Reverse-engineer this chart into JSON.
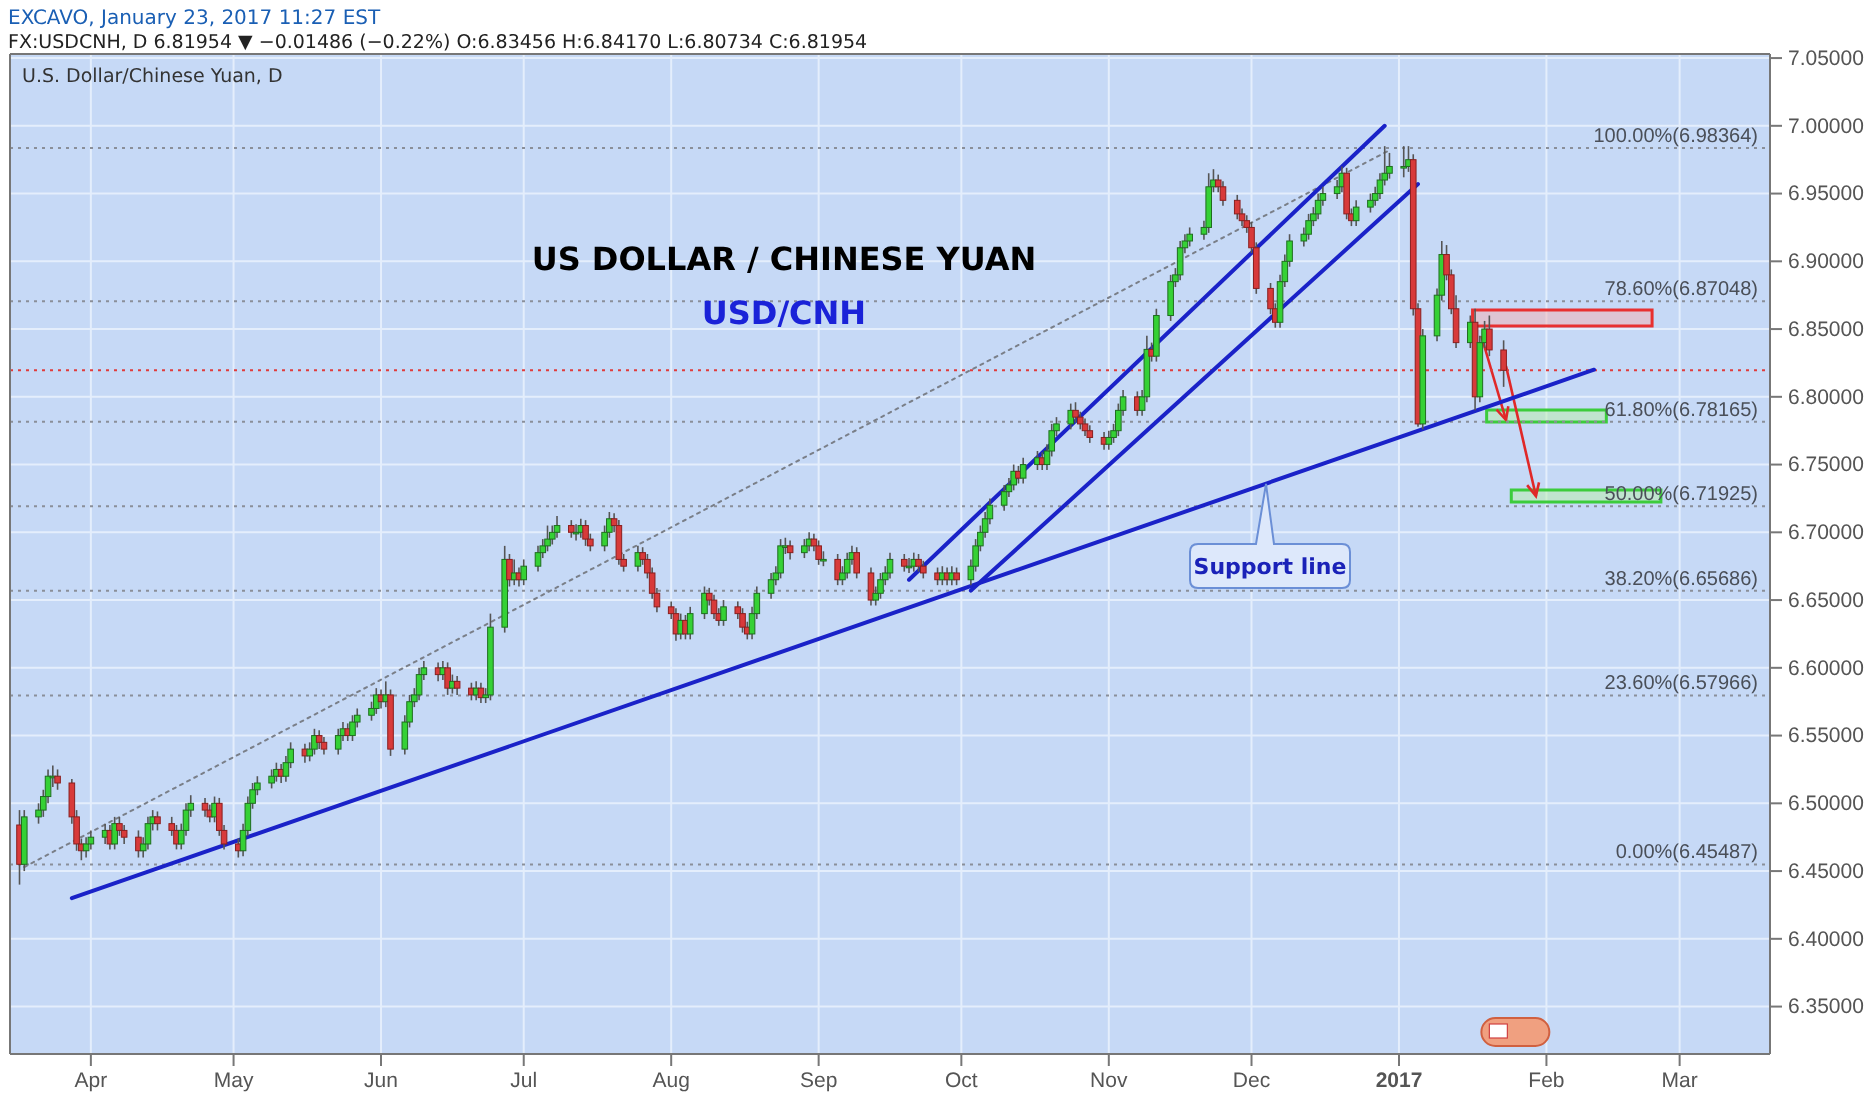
{
  "chart_data": {
    "type": "candlestick",
    "title": "US DOLLAR / CHINESE YUAN",
    "subtitle": "USD/CNH",
    "annotations": [
      "EXCAVO, January 23, 2017 11:27 EST",
      "FX:USDCNH, D 6.81954 ▼ −0.01486 (−0.22%) O:6.83456 H:6.84170 L:6.80734 C:6.81954",
      "U.S. Dollar/Chinese Yuan, D",
      "Support line"
    ],
    "xlim": [
      "2016-03-15",
      "2017-03-20"
    ],
    "xticks": [
      {
        "value": "2016-04-01",
        "label": "Apr"
      },
      {
        "value": "2016-05-01",
        "label": "May"
      },
      {
        "value": "2016-06-01",
        "label": "Jun"
      },
      {
        "value": "2016-07-01",
        "label": "Jul"
      },
      {
        "value": "2016-08-01",
        "label": "Aug"
      },
      {
        "value": "2016-09-01",
        "label": "Sep"
      },
      {
        "value": "2016-10-01",
        "label": "Oct"
      },
      {
        "value": "2016-11-01",
        "label": "Nov"
      },
      {
        "value": "2016-12-01",
        "label": "Dec"
      },
      {
        "value": "2017-01-01",
        "label": "2017"
      },
      {
        "value": "2017-02-01",
        "label": "Feb"
      },
      {
        "value": "2017-03-01",
        "label": "Mar"
      }
    ],
    "ylim": [
      6.315,
      7.053
    ],
    "yticks": [
      {
        "value": 6.35,
        "label": "6.35000"
      },
      {
        "value": 6.4,
        "label": "6.40000"
      },
      {
        "value": 6.45,
        "label": "6.45000"
      },
      {
        "value": 6.5,
        "label": "6.50000"
      },
      {
        "value": 6.55,
        "label": "6.55000"
      },
      {
        "value": 6.6,
        "label": "6.60000"
      },
      {
        "value": 6.65,
        "label": "6.65000"
      },
      {
        "value": 6.7,
        "label": "6.70000"
      },
      {
        "value": 6.75,
        "label": "6.75000"
      },
      {
        "value": 6.8,
        "label": "6.80000"
      },
      {
        "value": 6.85,
        "label": "6.85000"
      },
      {
        "value": 6.9,
        "label": "6.90000"
      },
      {
        "value": 6.95,
        "label": "6.95000"
      },
      {
        "value": 7.0,
        "label": "7.00000"
      },
      {
        "value": 7.05,
        "label": "7.05000"
      }
    ],
    "grid": true,
    "ref_lines": [
      {
        "axis": "y",
        "value": 6.98364,
        "label": "100.00%(6.98364)",
        "color": "#8a8f99",
        "line_style": "dotted"
      },
      {
        "axis": "y",
        "value": 6.87048,
        "label": "78.60%(6.87048)",
        "color": "#8a8f99",
        "line_style": "dotted"
      },
      {
        "axis": "y",
        "value": 6.78165,
        "label": "61.80%(6.78165)",
        "color": "#8a8f99",
        "line_style": "dotted"
      },
      {
        "axis": "y",
        "value": 6.71925,
        "label": "50.00%(6.71925)",
        "color": "#8a8f99",
        "line_style": "dotted"
      },
      {
        "axis": "y",
        "value": 6.65686,
        "label": "38.20%(6.65686)",
        "color": "#8a8f99",
        "line_style": "dotted"
      },
      {
        "axis": "y",
        "value": 6.57966,
        "label": "23.60%(6.57966)",
        "color": "#8a8f99",
        "line_style": "dotted"
      },
      {
        "axis": "y",
        "value": 6.45487,
        "label": "0.00%(6.45487)",
        "color": "#8a8f99",
        "line_style": "dotted"
      },
      {
        "axis": "y",
        "value": 6.81954,
        "color": "#e03c3c",
        "line_style": "dotted"
      }
    ],
    "series": [
      {
        "type": "line",
        "color": "#7a7f88",
        "line_style": "dotted",
        "x": [
          "2016-03-18",
          "2016-12-30"
        ],
        "values": [
          6.453,
          6.982
        ]
      },
      {
        "type": "line",
        "color": "#1a22c8",
        "x": [
          "2016-03-28",
          "2017-02-11"
        ],
        "values": [
          6.43,
          6.82
        ]
      },
      {
        "type": "line",
        "color": "#1a22c8",
        "x": [
          "2016-09-20",
          "2016-12-29"
        ],
        "values": [
          6.665,
          7.0
        ]
      },
      {
        "type": "line",
        "color": "#1a22c8",
        "x": [
          "2016-10-03",
          "2017-01-05"
        ],
        "values": [
          6.657,
          6.957
        ]
      }
    ],
    "x": [
      "2016-03-17",
      "2016-03-18",
      "2016-03-21",
      "2016-03-22",
      "2016-03-23",
      "2016-03-24",
      "2016-03-25",
      "2016-03-28",
      "2016-03-29",
      "2016-03-30",
      "2016-03-31",
      "2016-04-01",
      "2016-04-04",
      "2016-04-05",
      "2016-04-06",
      "2016-04-07",
      "2016-04-08",
      "2016-04-11",
      "2016-04-12",
      "2016-04-13",
      "2016-04-14",
      "2016-04-15",
      "2016-04-18",
      "2016-04-19",
      "2016-04-20",
      "2016-04-21",
      "2016-04-22",
      "2016-04-25",
      "2016-04-26",
      "2016-04-27",
      "2016-04-28",
      "2016-04-29",
      "2016-05-02",
      "2016-05-03",
      "2016-05-04",
      "2016-05-05",
      "2016-05-06",
      "2016-05-09",
      "2016-05-10",
      "2016-05-11",
      "2016-05-12",
      "2016-05-13",
      "2016-05-16",
      "2016-05-17",
      "2016-05-18",
      "2016-05-19",
      "2016-05-20",
      "2016-05-23",
      "2016-05-24",
      "2016-05-25",
      "2016-05-26",
      "2016-05-27",
      "2016-05-30",
      "2016-05-31",
      "2016-06-01",
      "2016-06-02",
      "2016-06-03",
      "2016-06-06",
      "2016-06-07",
      "2016-06-08",
      "2016-06-09",
      "2016-06-10",
      "2016-06-13",
      "2016-06-14",
      "2016-06-15",
      "2016-06-16",
      "2016-06-17",
      "2016-06-20",
      "2016-06-21",
      "2016-06-22",
      "2016-06-23",
      "2016-06-24",
      "2016-06-27",
      "2016-06-28",
      "2016-06-29",
      "2016-06-30",
      "2016-07-01",
      "2016-07-04",
      "2016-07-05",
      "2016-07-06",
      "2016-07-07",
      "2016-07-08",
      "2016-07-11",
      "2016-07-12",
      "2016-07-13",
      "2016-07-14",
      "2016-07-15",
      "2016-07-18",
      "2016-07-19",
      "2016-07-20",
      "2016-07-21",
      "2016-07-22",
      "2016-07-25",
      "2016-07-26",
      "2016-07-27",
      "2016-07-28",
      "2016-07-29",
      "2016-08-01",
      "2016-08-02",
      "2016-08-03",
      "2016-08-04",
      "2016-08-05",
      "2016-08-08",
      "2016-08-09",
      "2016-08-10",
      "2016-08-11",
      "2016-08-12",
      "2016-08-15",
      "2016-08-16",
      "2016-08-17",
      "2016-08-18",
      "2016-08-19",
      "2016-08-22",
      "2016-08-23",
      "2016-08-24",
      "2016-08-25",
      "2016-08-26",
      "2016-08-29",
      "2016-08-30",
      "2016-08-31",
      "2016-09-01",
      "2016-09-02",
      "2016-09-05",
      "2016-09-06",
      "2016-09-07",
      "2016-09-08",
      "2016-09-09",
      "2016-09-12",
      "2016-09-13",
      "2016-09-14",
      "2016-09-15",
      "2016-09-16",
      "2016-09-19",
      "2016-09-20",
      "2016-09-21",
      "2016-09-22",
      "2016-09-23",
      "2016-09-26",
      "2016-09-27",
      "2016-09-28",
      "2016-09-29",
      "2016-09-30",
      "2016-10-03",
      "2016-10-04",
      "2016-10-05",
      "2016-10-06",
      "2016-10-07",
      "2016-10-10",
      "2016-10-11",
      "2016-10-12",
      "2016-10-13",
      "2016-10-14",
      "2016-10-17",
      "2016-10-18",
      "2016-10-19",
      "2016-10-20",
      "2016-10-21",
      "2016-10-24",
      "2016-10-25",
      "2016-10-26",
      "2016-10-27",
      "2016-10-28",
      "2016-10-31",
      "2016-11-01",
      "2016-11-02",
      "2016-11-03",
      "2016-11-04",
      "2016-11-07",
      "2016-11-08",
      "2016-11-09",
      "2016-11-10",
      "2016-11-11",
      "2016-11-14",
      "2016-11-15",
      "2016-11-16",
      "2016-11-17",
      "2016-11-18",
      "2016-11-21",
      "2016-11-22",
      "2016-11-23",
      "2016-11-24",
      "2016-11-25",
      "2016-11-28",
      "2016-11-29",
      "2016-11-30",
      "2016-12-01",
      "2016-12-02",
      "2016-12-05",
      "2016-12-06",
      "2016-12-07",
      "2016-12-08",
      "2016-12-09",
      "2016-12-12",
      "2016-12-13",
      "2016-12-14",
      "2016-12-15",
      "2016-12-16",
      "2016-12-19",
      "2016-12-20",
      "2016-12-21",
      "2016-12-22",
      "2016-12-23",
      "2016-12-26",
      "2016-12-27",
      "2016-12-28",
      "2016-12-29",
      "2016-12-30",
      "2017-01-02",
      "2017-01-03",
      "2017-01-04",
      "2017-01-05",
      "2017-01-06",
      "2017-01-09",
      "2017-01-10",
      "2017-01-11",
      "2017-01-12",
      "2017-01-13",
      "2017-01-16",
      "2017-01-17",
      "2017-01-18",
      "2017-01-19",
      "2017-01-20",
      "2017-01-23"
    ],
    "ohlc": [
      [
        6.484,
        6.495,
        6.44,
        6.455
      ],
      [
        6.455,
        6.495,
        6.45,
        6.49
      ],
      [
        6.49,
        6.5,
        6.485,
        6.495
      ],
      [
        6.495,
        6.51,
        6.49,
        6.505
      ],
      [
        6.505,
        6.525,
        6.5,
        6.52
      ],
      [
        6.52,
        6.528,
        6.512,
        6.52
      ],
      [
        6.52,
        6.525,
        6.51,
        6.515
      ],
      [
        6.515,
        6.518,
        6.485,
        6.49
      ],
      [
        6.49,
        6.495,
        6.465,
        6.47
      ],
      [
        6.47,
        6.474,
        6.458,
        6.465
      ],
      [
        6.465,
        6.475,
        6.46,
        6.47
      ],
      [
        6.47,
        6.48,
        6.466,
        6.475
      ],
      [
        6.475,
        6.485,
        6.47,
        6.48
      ],
      [
        6.48,
        6.484,
        6.466,
        6.47
      ],
      [
        6.47,
        6.49,
        6.466,
        6.485
      ],
      [
        6.485,
        6.49,
        6.476,
        6.48
      ],
      [
        6.48,
        6.484,
        6.47,
        6.475
      ],
      [
        6.475,
        6.48,
        6.46,
        6.465
      ],
      [
        6.465,
        6.475,
        6.46,
        6.47
      ],
      [
        6.47,
        6.49,
        6.466,
        6.485
      ],
      [
        6.485,
        6.495,
        6.48,
        6.49
      ],
      [
        6.49,
        6.494,
        6.48,
        6.485
      ],
      [
        6.485,
        6.49,
        6.476,
        6.48
      ],
      [
        6.48,
        6.484,
        6.466,
        6.47
      ],
      [
        6.47,
        6.485,
        6.466,
        6.48
      ],
      [
        6.48,
        6.5,
        6.476,
        6.495
      ],
      [
        6.495,
        6.506,
        6.49,
        6.5
      ],
      [
        6.5,
        6.504,
        6.49,
        6.495
      ],
      [
        6.495,
        6.499,
        6.486,
        6.49
      ],
      [
        6.49,
        6.505,
        6.486,
        6.5
      ],
      [
        6.5,
        6.504,
        6.476,
        6.48
      ],
      [
        6.48,
        6.484,
        6.466,
        6.47
      ],
      [
        6.47,
        6.474,
        6.46,
        6.465
      ],
      [
        6.465,
        6.485,
        6.461,
        6.48
      ],
      [
        6.48,
        6.505,
        6.476,
        6.5
      ],
      [
        6.5,
        6.515,
        6.496,
        6.51
      ],
      [
        6.51,
        6.52,
        6.506,
        6.515
      ],
      [
        6.515,
        6.525,
        6.511,
        6.52
      ],
      [
        6.52,
        6.53,
        6.516,
        6.525
      ],
      [
        6.525,
        6.529,
        6.515,
        6.52
      ],
      [
        6.52,
        6.535,
        6.516,
        6.53
      ],
      [
        6.53,
        6.545,
        6.526,
        6.54
      ],
      [
        6.54,
        6.544,
        6.53,
        6.535
      ],
      [
        6.535,
        6.545,
        6.531,
        6.54
      ],
      [
        6.54,
        6.555,
        6.536,
        6.55
      ],
      [
        6.55,
        6.554,
        6.54,
        6.545
      ],
      [
        6.545,
        6.549,
        6.536,
        6.54
      ],
      [
        6.54,
        6.555,
        6.536,
        6.55
      ],
      [
        6.55,
        6.56,
        6.546,
        6.555
      ],
      [
        6.555,
        6.559,
        6.546,
        6.55
      ],
      [
        6.55,
        6.565,
        6.546,
        6.56
      ],
      [
        6.56,
        6.57,
        6.556,
        6.565
      ],
      [
        6.565,
        6.575,
        6.561,
        6.57
      ],
      [
        6.57,
        6.585,
        6.566,
        6.58
      ],
      [
        6.58,
        6.584,
        6.57,
        6.575
      ],
      [
        6.575,
        6.59,
        6.571,
        6.58
      ],
      [
        6.58,
        6.584,
        6.535,
        6.54
      ],
      [
        6.54,
        6.565,
        6.536,
        6.56
      ],
      [
        6.56,
        6.58,
        6.556,
        6.575
      ],
      [
        6.575,
        6.585,
        6.571,
        6.58
      ],
      [
        6.58,
        6.6,
        6.576,
        6.595
      ],
      [
        6.595,
        6.605,
        6.591,
        6.6
      ],
      [
        6.6,
        6.604,
        6.59,
        6.595
      ],
      [
        6.595,
        6.605,
        6.591,
        6.6
      ],
      [
        6.6,
        6.604,
        6.58,
        6.585
      ],
      [
        6.585,
        6.595,
        6.581,
        6.59
      ],
      [
        6.59,
        6.594,
        6.58,
        6.585
      ],
      [
        6.585,
        6.589,
        6.576,
        6.58
      ],
      [
        6.58,
        6.59,
        6.576,
        6.585
      ],
      [
        6.585,
        6.589,
        6.574,
        6.578
      ],
      [
        6.578,
        6.585,
        6.574,
        6.58
      ],
      [
        6.58,
        6.64,
        6.576,
        6.63
      ],
      [
        6.63,
        6.69,
        6.626,
        6.68
      ],
      [
        6.68,
        6.684,
        6.66,
        6.665
      ],
      [
        6.665,
        6.68,
        6.661,
        6.67
      ],
      [
        6.67,
        6.674,
        6.66,
        6.665
      ],
      [
        6.665,
        6.68,
        6.661,
        6.675
      ],
      [
        6.675,
        6.69,
        6.671,
        6.685
      ],
      [
        6.685,
        6.695,
        6.681,
        6.69
      ],
      [
        6.69,
        6.705,
        6.686,
        6.695
      ],
      [
        6.695,
        6.705,
        6.691,
        6.7
      ],
      [
        6.7,
        6.712,
        6.696,
        6.705
      ],
      [
        6.705,
        6.709,
        6.696,
        6.7
      ],
      [
        6.7,
        6.706,
        6.694,
        6.7
      ],
      [
        6.7,
        6.71,
        6.696,
        6.705
      ],
      [
        6.705,
        6.709,
        6.69,
        6.695
      ],
      [
        6.695,
        6.699,
        6.686,
        6.69
      ],
      [
        6.69,
        6.705,
        6.686,
        6.7
      ],
      [
        6.7,
        6.715,
        6.696,
        6.71
      ],
      [
        6.71,
        6.714,
        6.7,
        6.705
      ],
      [
        6.705,
        6.709,
        6.676,
        6.68
      ],
      [
        6.68,
        6.684,
        6.671,
        6.675
      ],
      [
        6.675,
        6.69,
        6.671,
        6.685
      ],
      [
        6.685,
        6.689,
        6.676,
        6.68
      ],
      [
        6.68,
        6.684,
        6.666,
        6.67
      ],
      [
        6.67,
        6.674,
        6.651,
        6.655
      ],
      [
        6.655,
        6.659,
        6.641,
        6.645
      ],
      [
        6.645,
        6.649,
        6.636,
        6.64
      ],
      [
        6.64,
        6.644,
        6.62,
        6.625
      ],
      [
        6.625,
        6.64,
        6.621,
        6.635
      ],
      [
        6.635,
        6.639,
        6.621,
        6.625
      ],
      [
        6.625,
        6.645,
        6.621,
        6.64
      ],
      [
        6.64,
        6.66,
        6.636,
        6.655
      ],
      [
        6.655,
        6.659,
        6.646,
        6.65
      ],
      [
        6.65,
        6.654,
        6.636,
        6.64
      ],
      [
        6.64,
        6.644,
        6.631,
        6.635
      ],
      [
        6.635,
        6.65,
        6.631,
        6.645
      ],
      [
        6.645,
        6.649,
        6.636,
        6.64
      ],
      [
        6.64,
        6.644,
        6.626,
        6.63
      ],
      [
        6.63,
        6.634,
        6.621,
        6.625
      ],
      [
        6.625,
        6.645,
        6.621,
        6.64
      ],
      [
        6.64,
        6.66,
        6.636,
        6.655
      ],
      [
        6.655,
        6.67,
        6.651,
        6.665
      ],
      [
        6.665,
        6.675,
        6.661,
        6.67
      ],
      [
        6.67,
        6.695,
        6.666,
        6.69
      ],
      [
        6.69,
        6.696,
        6.684,
        6.69
      ],
      [
        6.69,
        6.694,
        6.68,
        6.685
      ],
      [
        6.685,
        6.695,
        6.681,
        6.69
      ],
      [
        6.69,
        6.7,
        6.686,
        6.695
      ],
      [
        6.695,
        6.699,
        6.686,
        6.69
      ],
      [
        6.69,
        6.694,
        6.676,
        6.68
      ],
      [
        6.68,
        6.686,
        6.675,
        6.68
      ],
      [
        6.68,
        6.684,
        6.661,
        6.665
      ],
      [
        6.665,
        6.675,
        6.661,
        6.67
      ],
      [
        6.67,
        6.685,
        6.666,
        6.68
      ],
      [
        6.68,
        6.69,
        6.676,
        6.685
      ],
      [
        6.685,
        6.689,
        6.666,
        6.67
      ],
      [
        6.67,
        6.674,
        6.646,
        6.65
      ],
      [
        6.65,
        6.66,
        6.646,
        6.655
      ],
      [
        6.655,
        6.67,
        6.651,
        6.665
      ],
      [
        6.665,
        6.675,
        6.661,
        6.67
      ],
      [
        6.67,
        6.685,
        6.666,
        6.68
      ],
      [
        6.68,
        6.684,
        6.671,
        6.675
      ],
      [
        6.675,
        6.681,
        6.67,
        6.675
      ],
      [
        6.675,
        6.685,
        6.671,
        6.68
      ],
      [
        6.68,
        6.684,
        6.671,
        6.675
      ],
      [
        6.675,
        6.679,
        6.666,
        6.67
      ],
      [
        6.67,
        6.674,
        6.661,
        6.665
      ],
      [
        6.665,
        6.675,
        6.661,
        6.67
      ],
      [
        6.67,
        6.674,
        6.661,
        6.665
      ],
      [
        6.665,
        6.675,
        6.661,
        6.67
      ],
      [
        6.67,
        6.674,
        6.661,
        6.665
      ],
      [
        6.665,
        6.68,
        6.661,
        6.675
      ],
      [
        6.675,
        6.695,
        6.671,
        6.69
      ],
      [
        6.69,
        6.705,
        6.686,
        6.7
      ],
      [
        6.7,
        6.715,
        6.696,
        6.71
      ],
      [
        6.71,
        6.725,
        6.706,
        6.72
      ],
      [
        6.72,
        6.735,
        6.716,
        6.73
      ],
      [
        6.73,
        6.74,
        6.726,
        6.735
      ],
      [
        6.735,
        6.75,
        6.731,
        6.745
      ],
      [
        6.745,
        6.749,
        6.736,
        6.74
      ],
      [
        6.74,
        6.755,
        6.736,
        6.75
      ],
      [
        6.75,
        6.76,
        6.746,
        6.755
      ],
      [
        6.755,
        6.759,
        6.746,
        6.75
      ],
      [
        6.75,
        6.765,
        6.746,
        6.76
      ],
      [
        6.76,
        6.78,
        6.756,
        6.775
      ],
      [
        6.775,
        6.785,
        6.771,
        6.78
      ],
      [
        6.78,
        6.795,
        6.776,
        6.79
      ],
      [
        6.79,
        6.796,
        6.781,
        6.785
      ],
      [
        6.785,
        6.789,
        6.776,
        6.78
      ],
      [
        6.78,
        6.784,
        6.771,
        6.775
      ],
      [
        6.775,
        6.779,
        6.766,
        6.77
      ],
      [
        6.77,
        6.774,
        6.761,
        6.765
      ],
      [
        6.765,
        6.775,
        6.761,
        6.77
      ],
      [
        6.77,
        6.78,
        6.766,
        6.775
      ],
      [
        6.775,
        6.795,
        6.771,
        6.79
      ],
      [
        6.79,
        6.805,
        6.786,
        6.8
      ],
      [
        6.8,
        6.804,
        6.786,
        6.79
      ],
      [
        6.79,
        6.805,
        6.786,
        6.8
      ],
      [
        6.8,
        6.845,
        6.796,
        6.835
      ],
      [
        6.835,
        6.84,
        6.826,
        6.83
      ],
      [
        6.83,
        6.865,
        6.826,
        6.86
      ],
      [
        6.86,
        6.89,
        6.856,
        6.885
      ],
      [
        6.885,
        6.895,
        6.881,
        6.89
      ],
      [
        6.89,
        6.915,
        6.886,
        6.91
      ],
      [
        6.91,
        6.92,
        6.906,
        6.915
      ],
      [
        6.915,
        6.925,
        6.911,
        6.92
      ],
      [
        6.92,
        6.93,
        6.916,
        6.925
      ],
      [
        6.925,
        6.965,
        6.921,
        6.955
      ],
      [
        6.955,
        6.968,
        6.951,
        6.96
      ],
      [
        6.96,
        6.964,
        6.951,
        6.955
      ],
      [
        6.955,
        6.959,
        6.941,
        6.945
      ],
      [
        6.945,
        6.949,
        6.931,
        6.935
      ],
      [
        6.935,
        6.939,
        6.926,
        6.93
      ],
      [
        6.93,
        6.934,
        6.921,
        6.925
      ],
      [
        6.925,
        6.929,
        6.906,
        6.91
      ],
      [
        6.91,
        6.914,
        6.876,
        6.88
      ],
      [
        6.88,
        6.884,
        6.861,
        6.865
      ],
      [
        6.865,
        6.869,
        6.851,
        6.855
      ],
      [
        6.855,
        6.89,
        6.851,
        6.885
      ],
      [
        6.885,
        6.905,
        6.881,
        6.9
      ],
      [
        6.9,
        6.92,
        6.896,
        6.915
      ],
      [
        6.915,
        6.925,
        6.911,
        6.92
      ],
      [
        6.92,
        6.935,
        6.916,
        6.93
      ],
      [
        6.93,
        6.94,
        6.926,
        6.935
      ],
      [
        6.935,
        6.95,
        6.931,
        6.945
      ],
      [
        6.945,
        6.955,
        6.941,
        6.95
      ],
      [
        6.95,
        6.96,
        6.946,
        6.955
      ],
      [
        6.955,
        6.97,
        6.951,
        6.965
      ],
      [
        6.965,
        6.969,
        6.931,
        6.935
      ],
      [
        6.935,
        6.939,
        6.926,
        6.93
      ],
      [
        6.93,
        6.945,
        6.926,
        6.94
      ],
      [
        6.94,
        6.95,
        6.936,
        6.945
      ],
      [
        6.945,
        6.955,
        6.941,
        6.95
      ],
      [
        6.95,
        6.965,
        6.946,
        6.96
      ],
      [
        6.96,
        6.985,
        6.956,
        6.965
      ],
      [
        6.965,
        6.98,
        6.961,
        6.97
      ],
      [
        6.97,
        6.985,
        6.962,
        6.97
      ],
      [
        6.97,
        6.985,
        6.966,
        6.975
      ],
      [
        6.975,
        6.979,
        6.86,
        6.865
      ],
      [
        6.865,
        6.869,
        6.778,
        6.78
      ],
      [
        6.78,
        6.85,
        6.776,
        6.845
      ],
      [
        6.845,
        6.88,
        6.841,
        6.875
      ],
      [
        6.875,
        6.915,
        6.871,
        6.905
      ],
      [
        6.905,
        6.912,
        6.886,
        6.89
      ],
      [
        6.89,
        6.894,
        6.861,
        6.865
      ],
      [
        6.865,
        6.875,
        6.836,
        6.84
      ],
      [
        6.84,
        6.86,
        6.836,
        6.855
      ],
      [
        6.855,
        6.865,
        6.79,
        6.8
      ],
      [
        6.8,
        6.845,
        6.796,
        6.84
      ],
      [
        6.84,
        6.856,
        6.836,
        6.85
      ],
      [
        6.85,
        6.86,
        6.83,
        6.8346
      ],
      [
        6.83456,
        6.8417,
        6.80734,
        6.81954
      ]
    ]
  }
}
